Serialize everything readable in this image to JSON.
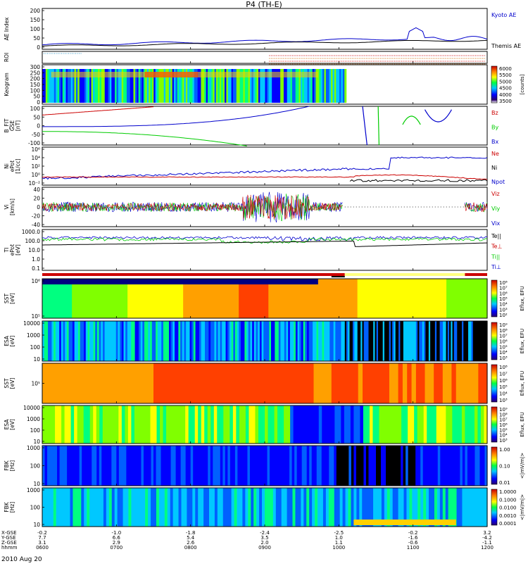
{
  "title": "P4 (TH-E)",
  "date": "2010 Aug 20",
  "colors": {
    "blue": "#0000cc",
    "red": "#cc0000",
    "green": "#00cc00",
    "black": "#000000",
    "orange": "#cc6600"
  },
  "footer": {
    "labels": [
      "X-GSE",
      "Y-GSE",
      "Z-GSE",
      "hhmm"
    ],
    "ticks": [
      {
        "x": "-0.2",
        "y": "7.7",
        "z": "3.1",
        "t": "0600"
      },
      {
        "x": "-1.0",
        "y": "6.6",
        "z": "2.9",
        "t": "0700"
      },
      {
        "x": "-1.8",
        "y": "5.4",
        "z": "2.6",
        "t": "0800"
      },
      {
        "x": "-2.4",
        "y": "3.5",
        "z": "2.0",
        "t": "0900"
      },
      {
        "x": "-2.5",
        "y": "1.0",
        "z": "1.1",
        "t": "1000"
      },
      {
        "x": "-0.2",
        "y": "-1.6",
        "z": "-0.6",
        "t": "1100"
      },
      {
        "x": "3.2",
        "y": "-4.2",
        "z": "-1.1",
        "t": "1200"
      }
    ]
  },
  "chart_data": [
    {
      "type": "line",
      "ylabel": "AE Index",
      "yticks": [
        "200",
        "150",
        "100",
        "50",
        "0"
      ],
      "series": [
        {
          "name": "Kyoto AE",
          "color": "#0000cc"
        },
        {
          "name": "Themis AE",
          "color": "#000000"
        }
      ]
    },
    {
      "type": "line",
      "ylabel": "ROI",
      "yticks": []
    },
    {
      "type": "heatmap",
      "ylabel": "Keogram",
      "yticks": [
        "300",
        "250",
        "200",
        "150",
        "100",
        "50",
        "0"
      ],
      "colorbar": {
        "ticks": [
          "6000",
          "5500",
          "5000",
          "4500",
          "4000",
          "3500"
        ],
        "label": "[counts]"
      }
    },
    {
      "type": "line",
      "ylabel": "B_FIT",
      "ylabel2": "GSE",
      "ylabel3": "[nT]",
      "yticks": [
        "100",
        "50",
        "0",
        "-50",
        "-100"
      ],
      "series": [
        {
          "name": "Bz",
          "color": "#cc0000"
        },
        {
          "name": "By",
          "color": "#00cc00"
        },
        {
          "name": "Bx",
          "color": "#0000cc"
        }
      ]
    },
    {
      "type": "line",
      "ylabel": "Ni",
      "ylabel2": "ePot",
      "ylabel3": "[1/cc]",
      "yticks": [
        "10⁶",
        "10⁴",
        "10²",
        "10⁰",
        "10⁻²"
      ],
      "series": [
        {
          "name": "Ne",
          "color": "#cc0000"
        },
        {
          "name": "Ni",
          "color": "#000000"
        },
        {
          "name": "Npot",
          "color": "#0000cc"
        }
      ]
    },
    {
      "type": "line",
      "ylabel": "Vi",
      "ylabel2": "[km/s]",
      "yticks": [
        "40",
        "20",
        "0",
        "-20",
        "-40"
      ],
      "series": [
        {
          "name": "Viz",
          "color": "#cc0000"
        },
        {
          "name": "Viy",
          "color": "#00cc00"
        },
        {
          "name": "Vix",
          "color": "#0000cc"
        }
      ]
    },
    {
      "type": "line",
      "ylabel": "TI",
      "ylabel2": "ePot",
      "ylabel3": "[eV]",
      "yticks": [
        "1000.0",
        "100.0",
        "10.0",
        "1.0",
        "0.1"
      ],
      "series": [
        {
          "name": "Te||",
          "color": "#000000"
        },
        {
          "name": "Te⊥",
          "color": "#cc0000"
        },
        {
          "name": "Ti||",
          "color": "#00cc00"
        },
        {
          "name": "Ti⊥",
          "color": "#0000cc"
        }
      ]
    },
    {
      "type": "heatmap",
      "ylabel": "SST",
      "ylabel2": "[eV]",
      "yticks": [
        "10⁶",
        "10⁵"
      ],
      "colorbar": {
        "ticks": [
          "10⁸",
          "10⁷",
          "10⁶",
          "10⁵",
          "10⁴",
          "10³",
          "10²"
        ],
        "label": "Eflux, EFU"
      }
    },
    {
      "type": "heatmap",
      "ylabel": "ESA",
      "ylabel2": "[eV]",
      "yticks": [
        "10000",
        "1000",
        "100",
        "10"
      ],
      "colorbar": {
        "ticks": [
          "10⁹",
          "10⁸",
          "10⁷",
          "10⁶",
          "10⁵",
          "10⁴",
          "10³"
        ],
        "label": "Eflux, EFU"
      }
    },
    {
      "type": "heatmap",
      "ylabel": "SST",
      "ylabel2": "[eV]",
      "yticks": [
        "10⁵"
      ],
      "colorbar": {
        "ticks": [
          "10⁸",
          "10⁷",
          "10⁶",
          "10⁵",
          "10⁴",
          "10³"
        ],
        "label": "Eflux, EFU"
      }
    },
    {
      "type": "heatmap",
      "ylabel": "ESA",
      "ylabel2": "[eV]",
      "yticks": [
        "10000",
        "1000",
        "100",
        "10"
      ],
      "colorbar": {
        "ticks": [
          "10⁹",
          "10⁸",
          "10⁷",
          "10⁶",
          "10⁵",
          "10⁴",
          "10³"
        ],
        "label": "Eflux, EFU"
      }
    },
    {
      "type": "heatmap",
      "ylabel": "FBK",
      "ylabel2": "[Hz]",
      "yticks": [
        "1000",
        "100",
        "10"
      ],
      "colorbar": {
        "ticks": [
          "1.00",
          "0.10",
          "0.01"
        ],
        "label": "<|mV/m|>"
      }
    },
    {
      "type": "heatmap",
      "ylabel": "FBK",
      "ylabel2": "[Hz]",
      "yticks": [
        "1000",
        "100",
        "10"
      ],
      "colorbar": {
        "ticks": [
          "1.0000",
          "0.1000",
          "0.0100",
          "0.0010",
          "0.0001"
        ],
        "label": "<|mV/m|>"
      }
    }
  ]
}
